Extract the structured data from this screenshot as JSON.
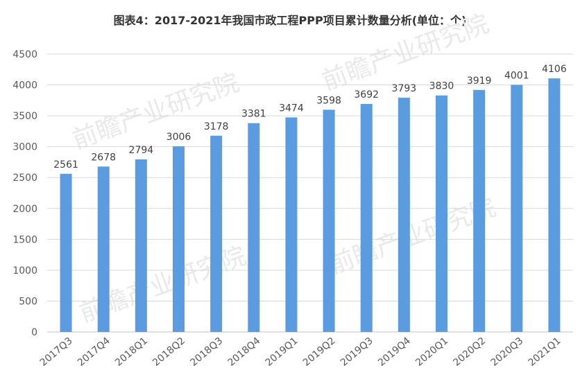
{
  "chart_data": {
    "type": "bar",
    "title": "图表4：2017-2021年我国市政工程PPP项目累计数量分析(单位：个)",
    "categories": [
      "2017Q3",
      "2017Q4",
      "2018Q1",
      "2018Q2",
      "2018Q3",
      "2018Q4",
      "2019Q1",
      "2019Q2",
      "2019Q3",
      "2019Q4",
      "2020Q1",
      "2020Q2",
      "2020Q3",
      "2021Q1"
    ],
    "values": [
      2561,
      2678,
      2794,
      3006,
      3178,
      3381,
      3474,
      3598,
      3692,
      3793,
      3830,
      3919,
      4001,
      4106
    ],
    "ylim": [
      0,
      4500
    ],
    "yticks": [
      0,
      500,
      1000,
      1500,
      2000,
      2500,
      3000,
      3500,
      4000,
      4500
    ],
    "grid": true,
    "bar_color": "#5b9be0",
    "watermark": "前瞻产业研究院"
  }
}
